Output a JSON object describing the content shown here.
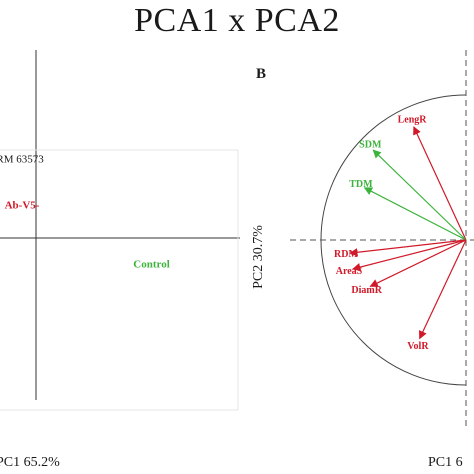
{
  "main_title": "PCA1 x PCA2",
  "chart_data": [
    {
      "type": "scatter",
      "panel_label": "",
      "xlabel": "PC1  65.2%",
      "ylabel": "",
      "points": [
        {
          "label": "RM 63573",
          "x": -0.24,
          "y": 0.31,
          "color": "#1a1a1a"
        },
        {
          "label": "Ab-V5-",
          "x": -0.19,
          "y": 0.12,
          "color": "#d01a2a"
        },
        {
          "label": "Control",
          "x": 0.59,
          "y": -0.12,
          "color": "#3cb33c"
        }
      ],
      "colors": {
        "treatment": "#d01a2a",
        "control": "#3cb33c",
        "axis": "#333333"
      }
    },
    {
      "type": "scatter",
      "panel_label": "B",
      "xlabel": "PC1  6",
      "ylabel": "PC2  30.7%",
      "vectors": [
        {
          "name": "LengR",
          "x": -0.36,
          "y": 0.78,
          "group": "root"
        },
        {
          "name": "SDM",
          "x": -0.64,
          "y": 0.62,
          "group": "shoot"
        },
        {
          "name": "TDM",
          "x": -0.7,
          "y": 0.36,
          "group": "shoot"
        },
        {
          "name": "RDM",
          "x": -0.8,
          "y": -0.09,
          "group": "root"
        },
        {
          "name": "AreaS",
          "x": -0.78,
          "y": -0.2,
          "group": "root"
        },
        {
          "name": "DiamR",
          "x": -0.66,
          "y": -0.32,
          "group": "root"
        },
        {
          "name": "VolR",
          "x": -0.32,
          "y": -0.68,
          "group": "root"
        }
      ],
      "circle": {
        "radius": 1
      },
      "colors": {
        "root": "#d01a2a",
        "shoot": "#3cb33c",
        "circle": "#444444",
        "axis": "#333333"
      }
    }
  ]
}
